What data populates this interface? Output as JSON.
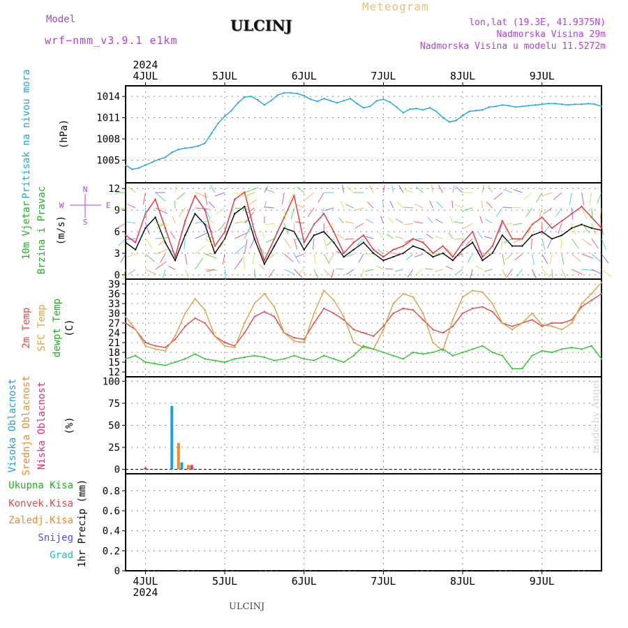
{
  "header": {
    "model_label": "Model",
    "model_name": "wrf−nmm_v3.9.1 e1km",
    "station": "ULCINJ",
    "product": "Meteogram",
    "coords": "lon,lat (19.3E, 41.9375N)",
    "elevation": "Nadmorska Visina 29m",
    "model_elevation": "Nadmorska Visina u modelu 11.5272m",
    "footer_station": "ULCINJ",
    "credit": "made by Angel"
  },
  "colors": {
    "pressure": "#1ea7e1",
    "wind_speed": "#000000",
    "gust": "#e8303a",
    "t2m": "#e54848",
    "sfc": "#d9a440",
    "dewpt": "#2ec52e",
    "high_cloud": "#1e9fe6",
    "mid_cloud": "#f08a2a",
    "low_cloud": "#e8306a",
    "grid": "#888888"
  },
  "time_axis": {
    "year": "2024",
    "days": [
      "4JUL",
      "5JUL",
      "6JUL",
      "7JUL",
      "8JUL",
      "9JUL"
    ],
    "start_hour": -6,
    "end_hour": 138
  },
  "chart_data": [
    {
      "type": "line",
      "panel": "pressure",
      "ylabel_lines": [
        "Pritisak na nivou mora",
        "(hPa)"
      ],
      "yticks": [
        1005,
        1008,
        1011,
        1014
      ],
      "ylim": [
        1001.8,
        1015.5
      ],
      "x_unit": "hours from 4JUL 00UTC",
      "series": [
        {
          "color_key": "pressure",
          "x": [
            -6,
            -4,
            -2,
            0,
            2,
            4,
            6,
            8,
            10,
            12,
            14,
            16,
            18,
            20,
            22,
            24,
            26,
            28,
            30,
            32,
            34,
            36,
            38,
            40,
            42,
            44,
            46,
            48,
            50,
            52,
            54,
            56,
            58,
            60,
            62,
            64,
            66,
            68,
            70,
            72,
            74,
            76,
            78,
            80,
            82,
            84,
            86,
            88,
            90,
            92,
            94,
            96,
            98,
            100,
            102,
            104,
            106,
            108,
            110,
            112,
            114,
            116,
            118,
            120,
            122,
            124,
            126,
            128,
            130,
            132,
            134,
            136,
            138
          ],
          "y": [
            1004.3,
            1003.7,
            1003.9,
            1004.3,
            1004.7,
            1005.1,
            1005.4,
            1006.1,
            1006.5,
            1006.7,
            1006.8,
            1007.0,
            1007.4,
            1008.8,
            1010.2,
            1011.2,
            1012.0,
            1013.1,
            1013.9,
            1014.0,
            1013.5,
            1012.8,
            1013.4,
            1014.2,
            1014.5,
            1014.5,
            1014.4,
            1014.1,
            1013.6,
            1013.3,
            1013.7,
            1013.4,
            1013.1,
            1013.4,
            1013.7,
            1013.0,
            1012.4,
            1012.6,
            1013.4,
            1013.6,
            1013.2,
            1012.5,
            1011.7,
            1012.2,
            1012.3,
            1012.1,
            1012.4,
            1011.9,
            1011.0,
            1010.4,
            1010.6,
            1011.3,
            1011.9,
            1012.0,
            1012.1,
            1012.5,
            1012.6,
            1012.8,
            1012.7,
            1012.5,
            1012.6,
            1012.7,
            1012.8,
            1012.9,
            1013.0,
            1013.0,
            1012.9,
            1012.8,
            1012.9,
            1012.9,
            1013.0,
            1012.9,
            1012.6
          ]
        }
      ]
    },
    {
      "type": "line",
      "panel": "wind",
      "ylabel_lines": [
        "10m Vjetar",
        "Brzina i Pravac",
        "(m/s)"
      ],
      "compass": {
        "n": "N",
        "s": "S",
        "w": "W",
        "e": "E"
      },
      "yticks": [
        0,
        3,
        6,
        9,
        12
      ],
      "ylim": [
        -0.6,
        12.8
      ],
      "x_unit": "hours from 4JUL 00UTC",
      "series": [
        {
          "color_key": "wind_speed",
          "x": [
            -6,
            -3,
            0,
            3,
            6,
            9,
            12,
            15,
            18,
            21,
            24,
            27,
            30,
            33,
            36,
            39,
            42,
            45,
            48,
            51,
            54,
            57,
            60,
            63,
            66,
            69,
            72,
            75,
            78,
            81,
            84,
            87,
            90,
            93,
            96,
            99,
            102,
            105,
            108,
            111,
            114,
            117,
            120,
            123,
            126,
            129,
            132,
            135,
            138
          ],
          "y": [
            4.5,
            3.5,
            6.5,
            8.0,
            4.5,
            2.0,
            5.5,
            8.5,
            7.0,
            3.0,
            5.0,
            8.5,
            9.5,
            5.0,
            1.5,
            4.0,
            6.5,
            6.0,
            3.5,
            5.5,
            6.0,
            4.5,
            2.5,
            3.5,
            4.5,
            3.0,
            2.0,
            2.5,
            3.0,
            4.0,
            3.5,
            2.5,
            3.0,
            2.0,
            3.5,
            4.5,
            2.0,
            3.0,
            5.5,
            4.0,
            4.0,
            5.5,
            6.0,
            5.0,
            5.5,
            6.5,
            7.0,
            6.5,
            6.2
          ]
        },
        {
          "color_key": "gust",
          "x": [
            -6,
            -3,
            0,
            3,
            6,
            9,
            12,
            15,
            18,
            21,
            24,
            27,
            30,
            33,
            36,
            39,
            42,
            45,
            48,
            51,
            54,
            57,
            60,
            63,
            66,
            69,
            72,
            75,
            78,
            81,
            84,
            87,
            90,
            93,
            96,
            99,
            102,
            105,
            108,
            111,
            114,
            117,
            120,
            123,
            126,
            129,
            132,
            135,
            138
          ],
          "y": [
            5.5,
            4.5,
            8.5,
            10.5,
            6.5,
            2.5,
            7.5,
            11.0,
            9.0,
            4.0,
            6.0,
            10.5,
            11.5,
            6.0,
            2.0,
            5.0,
            8.0,
            11.0,
            4.5,
            7.0,
            8.5,
            6.0,
            3.0,
            4.5,
            5.5,
            3.5,
            2.5,
            3.5,
            4.0,
            5.0,
            4.5,
            3.0,
            4.0,
            2.5,
            4.5,
            6.0,
            2.5,
            4.0,
            7.5,
            5.0,
            5.0,
            7.0,
            8.0,
            6.5,
            7.5,
            8.5,
            9.5,
            8.0,
            6.5
          ]
        }
      ]
    },
    {
      "type": "line",
      "panel": "temperature",
      "ylabel_lines": [
        "2m Temp",
        "SFC Temp",
        "dewpt Temp",
        "(C)"
      ],
      "yticks": [
        12,
        15,
        18,
        21,
        24,
        27,
        30,
        33,
        36,
        39
      ],
      "ylim": [
        10.5,
        40.5
      ],
      "x_unit": "hours from 4JUL 00UTC",
      "series": [
        {
          "color_key": "t2m",
          "x": [
            -6,
            -3,
            0,
            3,
            6,
            9,
            12,
            15,
            18,
            21,
            24,
            27,
            30,
            33,
            36,
            39,
            42,
            45,
            48,
            51,
            54,
            57,
            60,
            63,
            66,
            69,
            72,
            75,
            78,
            81,
            84,
            87,
            90,
            93,
            96,
            99,
            102,
            105,
            108,
            111,
            114,
            117,
            120,
            123,
            126,
            129,
            132,
            135,
            138
          ],
          "y": [
            27,
            25,
            21,
            20,
            19.5,
            22,
            26,
            28.5,
            27,
            23,
            21,
            20,
            24,
            29,
            30.5,
            29,
            24,
            22.5,
            22,
            27,
            31.5,
            30,
            28,
            25,
            24,
            23,
            26,
            30,
            31.5,
            31,
            28,
            25,
            24,
            26,
            30,
            31.5,
            32,
            30.5,
            27,
            26,
            27,
            28,
            26,
            27,
            27,
            28,
            32,
            34,
            36
          ]
        },
        {
          "color_key": "sfc",
          "x": [
            -6,
            -3,
            0,
            3,
            6,
            9,
            12,
            15,
            18,
            21,
            24,
            27,
            30,
            33,
            36,
            39,
            42,
            45,
            48,
            51,
            54,
            57,
            60,
            63,
            66,
            69,
            72,
            75,
            78,
            81,
            84,
            87,
            90,
            93,
            96,
            99,
            102,
            105,
            108,
            111,
            114,
            117,
            120,
            123,
            126,
            129,
            132,
            135,
            138
          ],
          "y": [
            29,
            25,
            20,
            19,
            18.5,
            23,
            30,
            34.5,
            31,
            23,
            20,
            19.5,
            27,
            33,
            36,
            32,
            24,
            21.5,
            21,
            30,
            37,
            34,
            29,
            21,
            19.5,
            19,
            25,
            33,
            36,
            35,
            30,
            21,
            18.5,
            28,
            35,
            37,
            36.5,
            33,
            27,
            25,
            27,
            30,
            26.5,
            26,
            25,
            27,
            33,
            36,
            39.5
          ]
        },
        {
          "color_key": "dewpt",
          "x": [
            -6,
            -3,
            0,
            3,
            6,
            9,
            12,
            15,
            18,
            21,
            24,
            27,
            30,
            33,
            36,
            39,
            42,
            45,
            48,
            51,
            54,
            57,
            60,
            63,
            66,
            69,
            72,
            75,
            78,
            81,
            84,
            87,
            90,
            93,
            96,
            99,
            102,
            105,
            108,
            111,
            114,
            117,
            120,
            123,
            126,
            129,
            132,
            135,
            138
          ],
          "y": [
            16,
            17,
            15,
            14.5,
            14,
            15,
            16,
            17.5,
            16,
            15.5,
            15,
            16,
            16.5,
            17,
            16.5,
            15.5,
            16,
            17,
            16,
            15.5,
            17,
            16,
            15,
            17,
            20,
            19,
            18,
            17,
            16,
            18,
            17.5,
            18,
            19,
            17,
            18,
            19,
            20,
            18,
            17,
            13,
            13,
            17,
            18.5,
            18,
            19,
            19.5,
            19,
            20,
            16
          ]
        }
      ]
    },
    {
      "type": "bar",
      "panel": "cloud",
      "ylabel_lines": [
        "Visoka Oblacnost",
        "Srednja Oblacnost",
        "Niska Oblacnost",
        "(%)"
      ],
      "yticks": [
        0,
        25,
        50,
        75,
        100
      ],
      "ylim": [
        -5,
        105
      ],
      "x_unit": "hours from 4JUL 00UTC",
      "series": [
        {
          "color_key": "high_cloud",
          "x": [
            8,
            11
          ],
          "values": [
            72,
            8
          ]
        },
        {
          "color_key": "mid_cloud",
          "x": [
            10,
            13
          ],
          "values": [
            30,
            5
          ]
        },
        {
          "color_key": "low_cloud",
          "x": [
            0,
            14
          ],
          "values": [
            2,
            5
          ]
        }
      ]
    },
    {
      "type": "bar",
      "panel": "precip",
      "legend": [
        "Ukupna Kisa",
        "Konvek.Kisa",
        "Zaledj.Kisa",
        "Snijeg",
        "Grad"
      ],
      "ylabel_lines": [
        "1hr Precip (mm)"
      ],
      "yticks": [
        0,
        0.2,
        0.4,
        0.6,
        0.8
      ],
      "ylim": [
        0,
        0.97
      ],
      "x_unit": "hours from 4JUL 00UTC",
      "series": [
        {
          "color_key": "dewpt",
          "x": [
            10
          ],
          "values": [
            0.01
          ]
        }
      ]
    }
  ]
}
